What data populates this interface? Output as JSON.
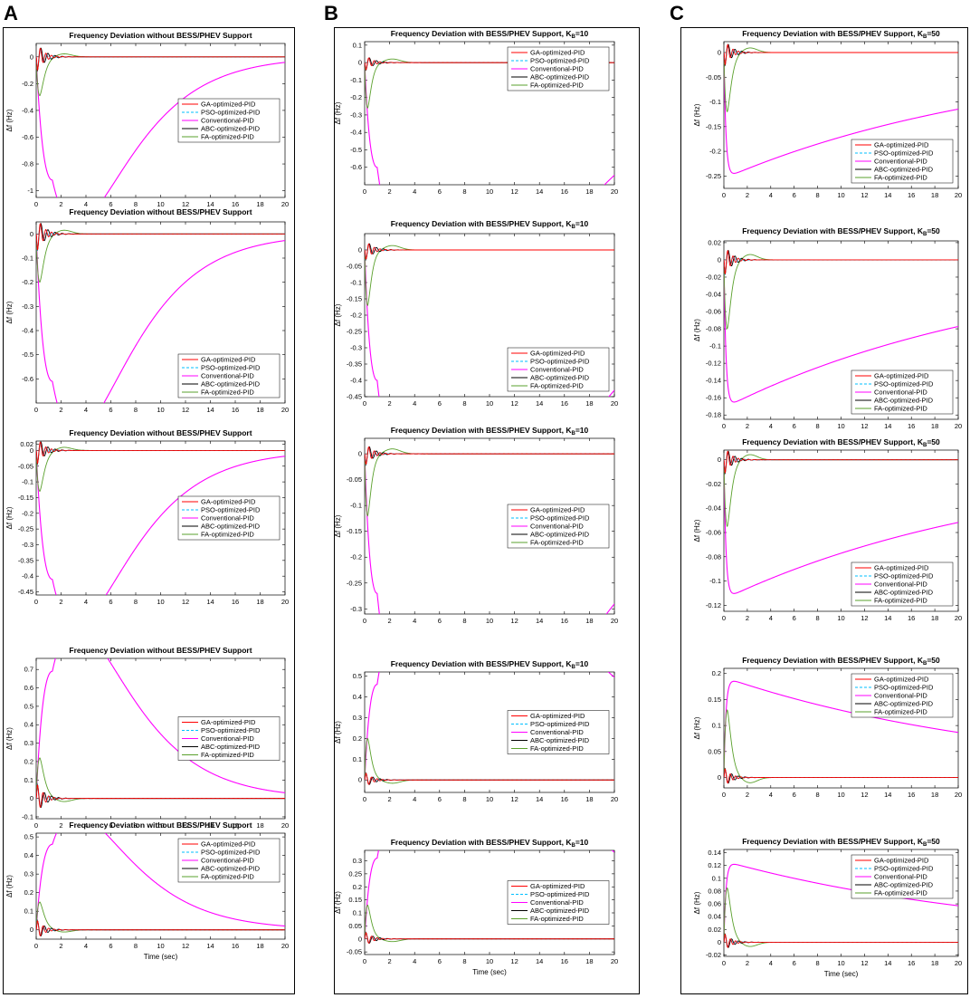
{
  "panels": [
    {
      "letter": "A",
      "xlabel": "Time (sec)"
    },
    {
      "letter": "B",
      "xlabel": "Time (sec)"
    },
    {
      "letter": "C",
      "xlabel": "Time (sec)"
    }
  ],
  "series_style": {
    "GA-optimized-PID": {
      "color": "#ff0000",
      "dash": "none"
    },
    "PSO-optimized-PID": {
      "color": "#00bfff",
      "dash": "3,2"
    },
    "Conventional-PID": {
      "color": "#ff00ff",
      "dash": "none"
    },
    "ABC-optimized-PID": {
      "color": "#000000",
      "dash": "none"
    },
    "FA-optimized-PID": {
      "color": "#5aa02c",
      "dash": "none"
    }
  },
  "chart_data": [
    {
      "panel": "A",
      "type": "line",
      "title": "Frequency Deviation without BESS/PHEV Support",
      "ylabel": "Δf (Hz)",
      "xlabel": "",
      "xlim": [
        0,
        20
      ],
      "ylim": [
        -1.05,
        0.1
      ],
      "xticks": [
        "0",
        "2",
        "4",
        "6",
        "8",
        "10",
        "12",
        "14",
        "16",
        "18",
        "20"
      ],
      "yticks": [
        "0",
        "-0.2",
        "-0.4",
        "-0.6",
        "-0.8",
        "-1"
      ],
      "legend_location": "right-middle",
      "curves": {
        "conventional": {
          "peak": -0.92,
          "t_peak": 1.3,
          "tau": 3.2,
          "decay_shape": 1
        },
        "pid_osc_amp": 0.12,
        "fa": {
          "peak": -0.29,
          "t_peak": 0.3,
          "recovery": 1.5
        }
      },
      "series": [
        {
          "name": "GA-optimized-PID"
        },
        {
          "name": "PSO-optimized-PID"
        },
        {
          "name": "Conventional-PID"
        },
        {
          "name": "ABC-optimized-PID"
        },
        {
          "name": "FA-optimized-PID"
        }
      ]
    },
    {
      "panel": "A",
      "type": "line",
      "title": "Frequency Deviation without BESS/PHEV Support",
      "ylabel": "Δf (Hz)",
      "xlabel": "",
      "xlim": [
        0,
        20
      ],
      "ylim": [
        -0.7,
        0.05
      ],
      "xticks": [
        "0",
        "2",
        "4",
        "6",
        "8",
        "10",
        "12",
        "14",
        "16",
        "18",
        "20"
      ],
      "yticks": [
        "0",
        "-0.1",
        "-0.2",
        "-0.3",
        "-0.4",
        "-0.5",
        "-0.6"
      ],
      "legend_location": "right-lower",
      "curves": {
        "conventional": {
          "peak": -0.61,
          "t_peak": 1.3,
          "tau": 3.2,
          "decay_shape": 1
        },
        "pid_osc_amp": 0.08,
        "fa": {
          "peak": -0.2,
          "t_peak": 0.3,
          "recovery": 1.5
        }
      },
      "series": [
        {
          "name": "GA-optimized-PID"
        },
        {
          "name": "PSO-optimized-PID"
        },
        {
          "name": "Conventional-PID"
        },
        {
          "name": "ABC-optimized-PID"
        },
        {
          "name": "FA-optimized-PID"
        }
      ]
    },
    {
      "panel": "A",
      "type": "line",
      "title": "Frequency Deviation without BESS/PHEV Support",
      "ylabel": "Δf (Hz)",
      "xlabel": "",
      "xlim": [
        0,
        20
      ],
      "ylim": [
        -0.46,
        0.03
      ],
      "xticks": [
        "0",
        "2",
        "4",
        "6",
        "8",
        "10",
        "12",
        "14",
        "16",
        "18",
        "20"
      ],
      "yticks": [
        "0.02",
        "0",
        "-0.05",
        "-0.1",
        "-0.15",
        "-0.2",
        "-0.25",
        "-0.3",
        "-0.35",
        "-0.4",
        "-0.45"
      ],
      "legend_location": "right-middle",
      "curves": {
        "conventional": {
          "peak": -0.41,
          "t_peak": 1.3,
          "tau": 3.2,
          "decay_shape": 1
        },
        "pid_osc_amp": 0.05,
        "fa": {
          "peak": -0.13,
          "t_peak": 0.3,
          "recovery": 1.5
        }
      },
      "series": [
        {
          "name": "GA-optimized-PID"
        },
        {
          "name": "PSO-optimized-PID"
        },
        {
          "name": "Conventional-PID"
        },
        {
          "name": "ABC-optimized-PID"
        },
        {
          "name": "FA-optimized-PID"
        }
      ]
    },
    {
      "panel": "A",
      "type": "line",
      "title": "Frequency Deviation without BESS/PHEV Support",
      "ylabel": "Δf (Hz)",
      "xlabel": "",
      "xlim": [
        0,
        20
      ],
      "ylim": [
        -0.11,
        0.76
      ],
      "xticks": [
        "0",
        "2",
        "4",
        "6",
        "8",
        "10",
        "12",
        "14",
        "16",
        "18",
        "20"
      ],
      "yticks": [
        "0.7",
        "0.6",
        "0.5",
        "0.4",
        "0.3",
        "0.2",
        "0.1",
        "0",
        "-0.1"
      ],
      "legend_location": "right-middle",
      "curves": {
        "conventional": {
          "peak": 0.69,
          "t_peak": 1.3,
          "tau": 3.2,
          "decay_shape": 1
        },
        "pid_osc_amp": 0.09,
        "fa": {
          "peak": 0.22,
          "t_peak": 0.3,
          "recovery": 1.5
        }
      },
      "series": [
        {
          "name": "GA-optimized-PID"
        },
        {
          "name": "PSO-optimized-PID"
        },
        {
          "name": "Conventional-PID"
        },
        {
          "name": "ABC-optimized-PID"
        },
        {
          "name": "FA-optimized-PID"
        }
      ]
    },
    {
      "panel": "A",
      "type": "line",
      "title": "Frequency Deviation without BESS/PHEV Support",
      "ylabel": "Δf (Hz)",
      "xlabel": "Time (sec)",
      "xlim": [
        0,
        20
      ],
      "ylim": [
        -0.05,
        0.52
      ],
      "xticks": [
        "0",
        "2",
        "4",
        "6",
        "8",
        "10",
        "12",
        "14",
        "16",
        "18",
        "20"
      ],
      "yticks": [
        "0.5",
        "0.4",
        "0.3",
        "0.2",
        "0.1",
        "0"
      ],
      "legend_location": "right-upper",
      "curves": {
        "conventional": {
          "peak": 0.46,
          "t_peak": 1.3,
          "tau": 3.2,
          "decay_shape": 1
        },
        "pid_osc_amp": 0.06,
        "fa": {
          "peak": 0.15,
          "t_peak": 0.3,
          "recovery": 1.5
        }
      },
      "series": [
        {
          "name": "GA-optimized-PID"
        },
        {
          "name": "PSO-optimized-PID"
        },
        {
          "name": "Conventional-PID"
        },
        {
          "name": "ABC-optimized-PID"
        },
        {
          "name": "FA-optimized-PID"
        }
      ]
    },
    {
      "panel": "B",
      "type": "line",
      "title": "Frequency Deviation with BESS/PHEV Support, K_B=10",
      "ylabel": "Δf (Hz)",
      "xlabel": "",
      "xlim": [
        0,
        20
      ],
      "ylim": [
        -0.7,
        0.12
      ],
      "xticks": [
        "0",
        "2",
        "4",
        "6",
        "8",
        "10",
        "12",
        "14",
        "16",
        "18",
        "20"
      ],
      "yticks": [
        "0.1",
        "0",
        "-0.1",
        "-0.2",
        "-0.3",
        "-0.4",
        "-0.5",
        "-0.6"
      ],
      "legend_location": "right-upper",
      "curves": {
        "conventional": {
          "peak": -0.6,
          "t_peak": 1.0,
          "tau": 6.5,
          "decay_shape": 1
        },
        "pid_osc_amp": 0.05,
        "fa": {
          "peak": -0.26,
          "t_peak": 0.25,
          "recovery": 1.2
        }
      },
      "series": [
        {
          "name": "GA-optimized-PID"
        },
        {
          "name": "PSO-optimized-PID"
        },
        {
          "name": "Conventional-PID"
        },
        {
          "name": "ABC-optimized-PID"
        },
        {
          "name": "FA-optimized-PID"
        }
      ]
    },
    {
      "panel": "B",
      "type": "line",
      "title": "Frequency Deviation with BESS/PHEV Support, K_B=10",
      "ylabel": "Δf (Hz)",
      "xlabel": "",
      "xlim": [
        0,
        20
      ],
      "ylim": [
        -0.45,
        0.05
      ],
      "xticks": [
        "0",
        "2",
        "4",
        "6",
        "8",
        "10",
        "12",
        "14",
        "16",
        "18",
        "20"
      ],
      "yticks": [
        "0",
        "-0.05",
        "-0.1",
        "-0.15",
        "-0.2",
        "-0.25",
        "-0.3",
        "-0.35",
        "-0.4",
        "-0.45"
      ],
      "legend_location": "right-lower",
      "curves": {
        "conventional": {
          "peak": -0.4,
          "t_peak": 1.0,
          "tau": 6.5,
          "decay_shape": 1
        },
        "pid_osc_amp": 0.035,
        "fa": {
          "peak": -0.17,
          "t_peak": 0.25,
          "recovery": 1.2
        }
      },
      "series": [
        {
          "name": "GA-optimized-PID"
        },
        {
          "name": "PSO-optimized-PID"
        },
        {
          "name": "Conventional-PID"
        },
        {
          "name": "ABC-optimized-PID"
        },
        {
          "name": "FA-optimized-PID"
        }
      ]
    },
    {
      "panel": "B",
      "type": "line",
      "title": "Frequency Deviation with BESS/PHEV Support, K_B=10",
      "ylabel": "Δf (Hz)",
      "xlabel": "",
      "xlim": [
        0,
        20
      ],
      "ylim": [
        -0.31,
        0.03
      ],
      "xticks": [
        "0",
        "2",
        "4",
        "6",
        "8",
        "10",
        "12",
        "14",
        "16",
        "18",
        "20"
      ],
      "yticks": [
        "0",
        "-0.05",
        "-0.1",
        "-0.15",
        "-0.2",
        "-0.25",
        "-0.3"
      ],
      "legend_location": "right-middle",
      "curves": {
        "conventional": {
          "peak": -0.27,
          "t_peak": 1.0,
          "tau": 6.5,
          "decay_shape": 1
        },
        "pid_osc_amp": 0.025,
        "fa": {
          "peak": -0.12,
          "t_peak": 0.25,
          "recovery": 1.2
        }
      },
      "series": [
        {
          "name": "GA-optimized-PID"
        },
        {
          "name": "PSO-optimized-PID"
        },
        {
          "name": "Conventional-PID"
        },
        {
          "name": "ABC-optimized-PID"
        },
        {
          "name": "FA-optimized-PID"
        }
      ]
    },
    {
      "panel": "B",
      "type": "line",
      "title": "Frequency Deviation with BESS/PHEV Support, K_B=10",
      "ylabel": "Δf (Hz)",
      "xlabel": "",
      "xlim": [
        0,
        20
      ],
      "ylim": [
        -0.06,
        0.52
      ],
      "xticks": [
        "0",
        "2",
        "4",
        "6",
        "8",
        "10",
        "12",
        "14",
        "16",
        "18",
        "20"
      ],
      "yticks": [
        "0.5",
        "0.4",
        "0.3",
        "0.2",
        "0.1",
        "0"
      ],
      "legend_location": "right-middle",
      "curves": {
        "conventional": {
          "peak": 0.46,
          "t_peak": 1.0,
          "tau": 6.5,
          "decay_shape": 1
        },
        "pid_osc_amp": 0.04,
        "fa": {
          "peak": 0.2,
          "t_peak": 0.25,
          "recovery": 1.2
        }
      },
      "series": [
        {
          "name": "GA-optimized-PID"
        },
        {
          "name": "PSO-optimized-PID"
        },
        {
          "name": "Conventional-PID"
        },
        {
          "name": "ABC-optimized-PID"
        },
        {
          "name": "FA-optimized-PID"
        }
      ]
    },
    {
      "panel": "B",
      "type": "line",
      "title": "Frequency Deviation with BESS/PHEV Support, K_B=10",
      "ylabel": "Δf (Hz)",
      "xlabel": "Time (sec)",
      "xlim": [
        0,
        20
      ],
      "ylim": [
        -0.06,
        0.34
      ],
      "xticks": [
        "0",
        "2",
        "4",
        "6",
        "8",
        "10",
        "12",
        "14",
        "16",
        "18",
        "20"
      ],
      "yticks": [
        "0.3",
        "0.25",
        "0.2",
        "0.15",
        "0.1",
        "0.05",
        "0",
        "-0.05"
      ],
      "legend_location": "right-middle",
      "curves": {
        "conventional": {
          "peak": 0.31,
          "t_peak": 1.0,
          "tau": 6.5,
          "decay_shape": 1
        },
        "pid_osc_amp": 0.03,
        "fa": {
          "peak": 0.13,
          "t_peak": 0.25,
          "recovery": 1.2
        }
      },
      "series": [
        {
          "name": "GA-optimized-PID"
        },
        {
          "name": "PSO-optimized-PID"
        },
        {
          "name": "Conventional-PID"
        },
        {
          "name": "ABC-optimized-PID"
        },
        {
          "name": "FA-optimized-PID"
        }
      ]
    },
    {
      "panel": "C",
      "type": "line",
      "title": "Frequency Deviation with BESS/PHEV Support, K_B=50",
      "ylabel": "Δf (Hz)",
      "xlabel": "",
      "xlim": [
        0,
        20
      ],
      "ylim": [
        -0.275,
        0.022
      ],
      "xticks": [
        "0",
        "2",
        "4",
        "6",
        "8",
        "10",
        "12",
        "14",
        "16",
        "18",
        "20"
      ],
      "yticks": [
        "0",
        "-0.05",
        "-0.1",
        "-0.15",
        "-0.2",
        "-0.25"
      ],
      "legend_location": "right-lower",
      "curves": {
        "conventional": {
          "peak": -0.255,
          "t_peak": 0.5,
          "tau": 25,
          "decay_shape": 2
        },
        "pid_osc_amp": 0.03,
        "fa": {
          "peak": -0.12,
          "t_peak": 0.3,
          "recovery": 1.3
        }
      },
      "series": [
        {
          "name": "GA-optimized-PID"
        },
        {
          "name": "PSO-optimized-PID"
        },
        {
          "name": "Conventional-PID"
        },
        {
          "name": "ABC-optimized-PID"
        },
        {
          "name": "FA-optimized-PID"
        }
      ]
    },
    {
      "panel": "C",
      "type": "line",
      "title": "Frequency Deviation with BESS/PHEV Support, K_B=50",
      "ylabel": "Δf (Hz)",
      "xlabel": "",
      "xlim": [
        0,
        20
      ],
      "ylim": [
        -0.185,
        0.022
      ],
      "xticks": [
        "0",
        "2",
        "4",
        "6",
        "8",
        "10",
        "12",
        "14",
        "16",
        "18",
        "20"
      ],
      "yticks": [
        "0.02",
        "0",
        "-0.02",
        "-0.04",
        "-0.06",
        "-0.08",
        "-0.1",
        "-0.12",
        "-0.14",
        "-0.16",
        "-0.18"
      ],
      "legend_location": "right-lower",
      "curves": {
        "conventional": {
          "peak": -0.172,
          "t_peak": 0.5,
          "tau": 25,
          "decay_shape": 2
        },
        "pid_osc_amp": 0.02,
        "fa": {
          "peak": -0.08,
          "t_peak": 0.3,
          "recovery": 1.3
        }
      },
      "series": [
        {
          "name": "GA-optimized-PID"
        },
        {
          "name": "PSO-optimized-PID"
        },
        {
          "name": "Conventional-PID"
        },
        {
          "name": "ABC-optimized-PID"
        },
        {
          "name": "FA-optimized-PID"
        }
      ]
    },
    {
      "panel": "C",
      "type": "line",
      "title": "Frequency Deviation with BESS/PHEV Support, K_B=50",
      "ylabel": "Δf (Hz)",
      "xlabel": "",
      "xlim": [
        0,
        20
      ],
      "ylim": [
        -0.125,
        0.008
      ],
      "xticks": [
        "0",
        "2",
        "4",
        "6",
        "8",
        "10",
        "12",
        "14",
        "16",
        "18",
        "20"
      ],
      "yticks": [
        "0",
        "-0.02",
        "-0.04",
        "-0.06",
        "-0.08",
        "-0.1",
        "-0.12"
      ],
      "legend_location": "right-lower",
      "curves": {
        "conventional": {
          "peak": -0.115,
          "t_peak": 0.5,
          "tau": 25,
          "decay_shape": 2
        },
        "pid_osc_amp": 0.013,
        "fa": {
          "peak": -0.055,
          "t_peak": 0.3,
          "recovery": 1.3
        }
      },
      "series": [
        {
          "name": "GA-optimized-PID"
        },
        {
          "name": "PSO-optimized-PID"
        },
        {
          "name": "Conventional-PID"
        },
        {
          "name": "ABC-optimized-PID"
        },
        {
          "name": "FA-optimized-PID"
        }
      ]
    },
    {
      "panel": "C",
      "type": "line",
      "title": "Frequency Deviation with BESS/PHEV Support, K_B=50",
      "ylabel": "Δf (Hz)",
      "xlabel": "",
      "xlim": [
        0,
        20
      ],
      "ylim": [
        -0.02,
        0.21
      ],
      "xticks": [
        "0",
        "2",
        "4",
        "6",
        "8",
        "10",
        "12",
        "14",
        "16",
        "18",
        "20"
      ],
      "yticks": [
        "0.2",
        "0.15",
        "0.1",
        "0.05",
        "0"
      ],
      "legend_location": "right-upper",
      "curves": {
        "conventional": {
          "peak": 0.193,
          "t_peak": 0.5,
          "tau": 25,
          "decay_shape": 2
        },
        "pid_osc_amp": 0.02,
        "fa": {
          "peak": 0.13,
          "t_peak": 0.3,
          "recovery": 1.3
        }
      },
      "series": [
        {
          "name": "GA-optimized-PID"
        },
        {
          "name": "PSO-optimized-PID"
        },
        {
          "name": "Conventional-PID"
        },
        {
          "name": "ABC-optimized-PID"
        },
        {
          "name": "FA-optimized-PID"
        }
      ]
    },
    {
      "panel": "C",
      "type": "line",
      "title": "Frequency Deviation with BESS/PHEV Support, K_B=50",
      "ylabel": "Δf (Hz)",
      "xlabel": "Time (sec)",
      "xlim": [
        0,
        20
      ],
      "ylim": [
        -0.022,
        0.145
      ],
      "xticks": [
        "0",
        "2",
        "4",
        "6",
        "8",
        "10",
        "12",
        "14",
        "16",
        "18",
        "20"
      ],
      "yticks": [
        "0.14",
        "0.12",
        "0.1",
        "0.08",
        "0.06",
        "0.04",
        "0.02",
        "0",
        "-0.02"
      ],
      "legend_location": "right-upper",
      "curves": {
        "conventional": {
          "peak": 0.127,
          "t_peak": 0.5,
          "tau": 25,
          "decay_shape": 2
        },
        "pid_osc_amp": 0.015,
        "fa": {
          "peak": 0.085,
          "t_peak": 0.3,
          "recovery": 1.3
        }
      },
      "series": [
        {
          "name": "GA-optimized-PID"
        },
        {
          "name": "PSO-optimized-PID"
        },
        {
          "name": "Conventional-PID"
        },
        {
          "name": "ABC-optimized-PID"
        },
        {
          "name": "FA-optimized-PID"
        }
      ]
    }
  ]
}
